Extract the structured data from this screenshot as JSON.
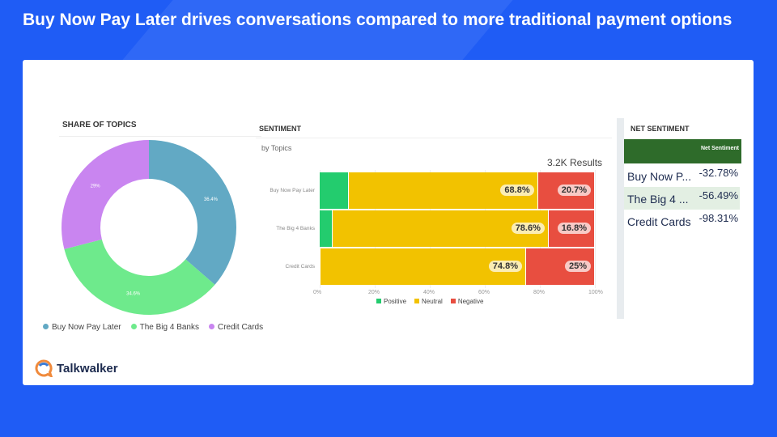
{
  "title": "Buy Now Pay Later drives conversations compared to more traditional payment options",
  "brand": "Talkwalker",
  "chart_data": [
    {
      "type": "pie",
      "title": "SHARE OF TOPICS",
      "categories": [
        "Buy Now Pay Later",
        "The Big 4 Banks",
        "Credit Cards"
      ],
      "values": [
        36.4,
        34.6,
        29
      ],
      "labels": [
        "36.4%",
        "34.6%",
        "29%"
      ],
      "colors": [
        "#62a9c4",
        "#6eea8c",
        "#c985f0"
      ],
      "legend": "bottom"
    },
    {
      "type": "bar",
      "stacked": true,
      "orientation": "horizontal",
      "title": "SENTIMENT",
      "subtitle": "by Topics",
      "results": "3.2K Results",
      "categories": [
        "Buy Now Pay Later",
        "The Big 4 Banks",
        "Credit Cards"
      ],
      "series": [
        {
          "name": "Positive",
          "color": "#23cc6e",
          "values": [
            10.5,
            4.6,
            0.2
          ]
        },
        {
          "name": "Neutral",
          "color": "#f2c200",
          "values": [
            68.8,
            78.6,
            74.8
          ],
          "labels": [
            "68.8%",
            "78.6%",
            "74.8%"
          ]
        },
        {
          "name": "Negative",
          "color": "#e84e40",
          "values": [
            20.7,
            16.8,
            25
          ],
          "labels": [
            "20.7%",
            "16.8%",
            "25%"
          ]
        }
      ],
      "xticks": [
        "0%",
        "20%",
        "40%",
        "60%",
        "80%",
        "100%"
      ],
      "xlim": [
        0,
        100
      ],
      "legend": "bottom"
    },
    {
      "type": "table",
      "title": "NET SENTIMENT",
      "header": "Net Sentiment",
      "rows": [
        {
          "name": "Buy Now P...",
          "value": "-32.78%"
        },
        {
          "name": "The Big 4 ...",
          "value": "-56.49%"
        },
        {
          "name": "Credit Cards",
          "value": "-98.31%"
        }
      ]
    }
  ]
}
